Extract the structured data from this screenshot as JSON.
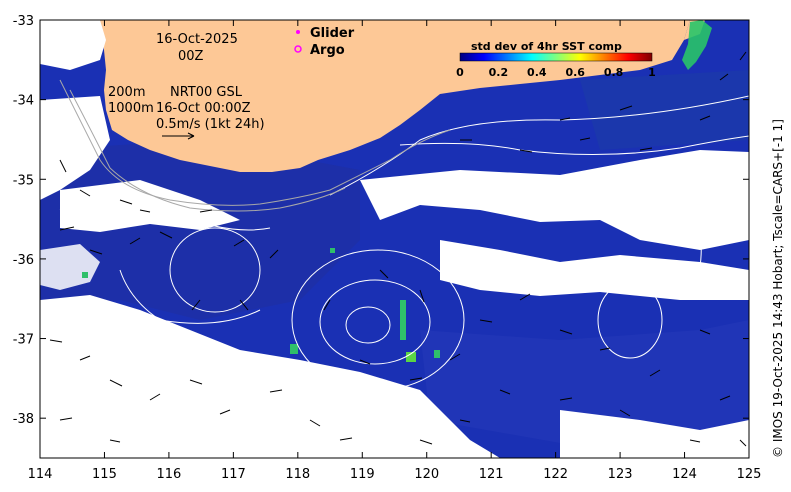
{
  "map": {
    "date_line": "16-Oct-2025",
    "time_line": "00Z",
    "depth_line_1": "200m",
    "product_line": "NRT00 GSL",
    "depth_line_2": "1000m",
    "timestamp_line": "16-Oct 00:00Z",
    "scale_line": "0.5m/s (1kt 24h)",
    "legend": {
      "glider_label": "Glider",
      "glider_color": "#ff00ff",
      "argo_label": "Argo",
      "argo_color": "#ff00ff"
    },
    "colorbar": {
      "title": "std dev of 4hr SST comp",
      "ticks": [
        "0",
        "0.2",
        "0.4",
        "0.6",
        "0.8",
        "1"
      ],
      "colors": [
        "#00007f",
        "#0000ff",
        "#007fff",
        "#00ffff",
        "#7fff7f",
        "#ffff00",
        "#ff7f00",
        "#ff0000",
        "#7f0000"
      ]
    },
    "credit": "© IMOS 19-Oct-2025 14:43 Hobart; Tscale=CARS+[-1 1]",
    "land_color": "#fdc896",
    "ocean_color": "#1a30b4"
  },
  "chart_data": {
    "type": "heatmap",
    "title": "",
    "xlabel": "",
    "ylabel": "",
    "xlim": [
      114,
      125
    ],
    "ylim": [
      -38.5,
      -33
    ],
    "x_ticks": [
      "114",
      "115",
      "116",
      "117",
      "118",
      "119",
      "120",
      "121",
      "122",
      "123",
      "124",
      "125"
    ],
    "y_ticks": [
      "-33",
      "-34",
      "-35",
      "-36",
      "-37",
      "-38"
    ],
    "colorbar_range": [
      0,
      1
    ]
  }
}
